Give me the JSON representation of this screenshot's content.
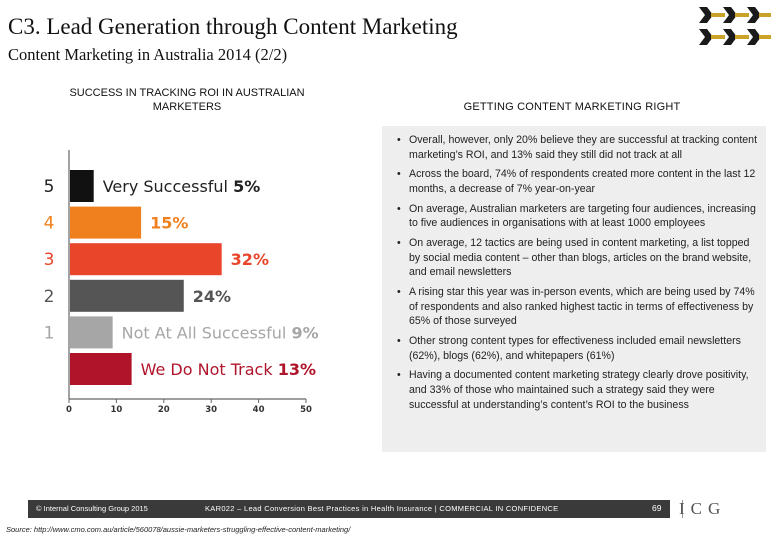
{
  "header": {
    "title": "C3. Lead Generation through Content Marketing",
    "subtitle": "Content Marketing in Australia 2014 (2/2)"
  },
  "left_heading": "SUCCESS IN TRACKING ROI IN AUSTRALIAN MARKETERS",
  "right_heading": "GETTING CONTENT MARKETING RIGHT",
  "chart_data": {
    "type": "bar",
    "orientation": "horizontal",
    "title": "SUCCESS IN TRACKING ROI IN AUSTRALIAN MARKETERS",
    "categories": [
      "5",
      "4",
      "3",
      "2",
      "1",
      ""
    ],
    "labels": [
      "Very Successful",
      "",
      "",
      "",
      "Not At All Successful",
      "We Do Not Track"
    ],
    "value_labels": [
      "5%",
      "15%",
      "32%",
      "24%",
      "9%",
      "13%"
    ],
    "values": [
      5,
      15,
      32,
      24,
      9,
      13
    ],
    "colors": [
      "#111111",
      "#f07f1e",
      "#e8452b",
      "#555555",
      "#a6a6a6",
      "#b0142b"
    ],
    "xlim": [
      0,
      50
    ],
    "xticks": [
      "0",
      "10",
      "20",
      "30",
      "40",
      "50"
    ],
    "grid": false
  },
  "bullets": [
    "Overall, however, only 20% believe they are successful at tracking content marketing’s ROI, and 13% said they still did not track at all",
    "Across the board, 74% of respondents created more content in the last 12 months, a decrease of 7% year-on-year",
    "On average, Australian marketers are targeting four audiences, increasing to five audiences in organisations with at least 1000 employees",
    "On average, 12 tactics are being used in content marketing, a list topped by social media content – other than blogs, articles on the brand website, and email newsletters",
    "A rising star this year was in-person events, which are being used by 74% of respondents and also ranked highest tactic in terms of effectiveness by 65% of those surveyed",
    "Other strong content types for effectiveness included email newsletters (62%), blogs (62%), and whitepapers (61%)",
    "Having a documented content marketing strategy clearly drove positivity, and 33% of those who maintained such a strategy said they were successful at understanding’s content’s ROI to the business"
  ],
  "bullet_char": "•",
  "footer": {
    "copyright": "© Internal Consulting Group 2015",
    "center": "KAR022 – Lead Conversion Best Practices in Health Insurance | COMMERCIAL IN CONFIDENCE",
    "page": "69",
    "logo": "ICG",
    "source": "Source: http://www.cmo.com.au/article/560078/aussie-marketers-struggling-effective-content-marketing/"
  }
}
